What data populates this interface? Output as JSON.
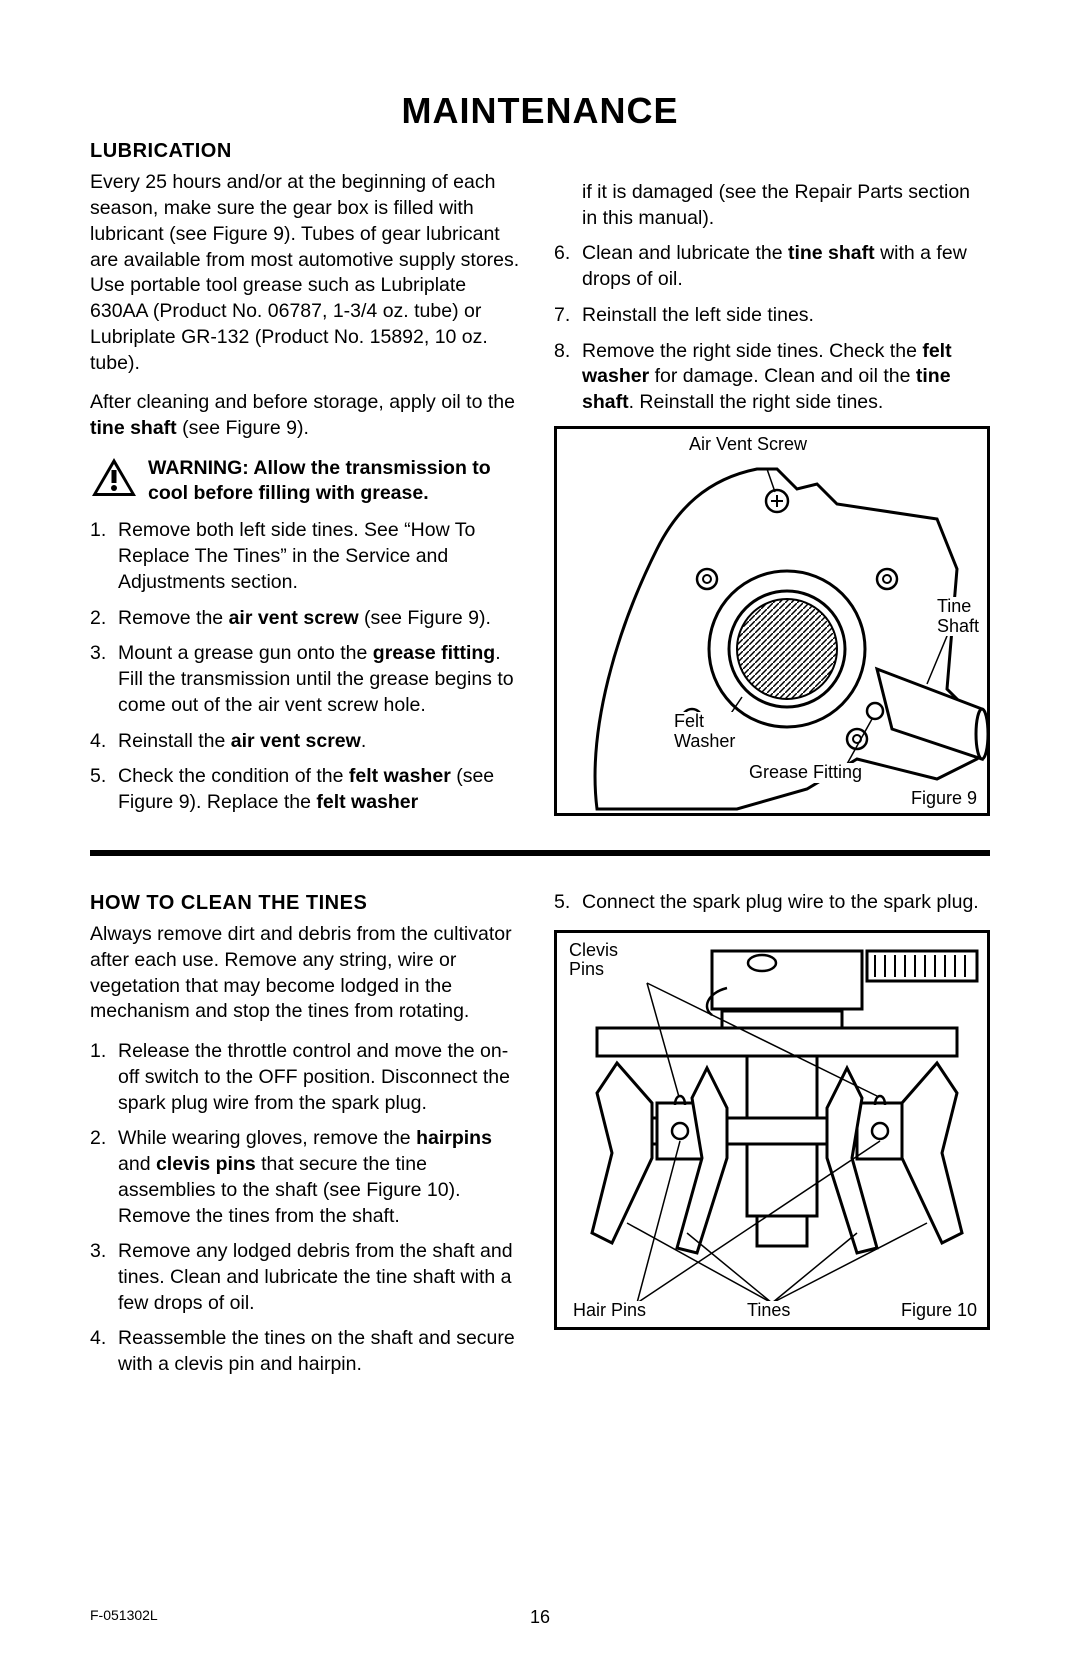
{
  "page": {
    "title": "MAINTENANCE",
    "footer_code": "F-051302L",
    "page_number": "16"
  },
  "lubrication": {
    "heading": "LUBRICATION",
    "intro": "Every 25 hours and/or at the beginning of each season, make sure the gear box is filled with lubricant (see Figure 9). Tubes of gear lubricant are available from most automotive supply stores. Use portable tool grease such as Lubriplate 630AA (Product No. 06787, 1-3/4 oz. tube) or Lubriplate GR-132 (Product No. 15892, 10 oz. tube).",
    "after": "After cleaning and before storage, apply oil to the ",
    "after_bold": "tine shaft",
    "after_tail": " (see Figure 9).",
    "warning": "WARNING: Allow the transmission to cool before filling with grease.",
    "steps_left": [
      {
        "n": "1.",
        "pre": "Remove both left side tines. See “How To Replace The Tines” in the Service and Adjustments section."
      },
      {
        "n": "2.",
        "pre": "Remove the ",
        "b1": "air vent screw",
        "post": " (see Figure 9)."
      },
      {
        "n": "3.",
        "pre": "Mount a grease gun onto the ",
        "b1": "grease fitting",
        "post": ". Fill the transmission until the grease begins to come out of the air vent screw hole."
      },
      {
        "n": "4.",
        "pre": "Reinstall the ",
        "b1": "air vent screw",
        "post": "."
      },
      {
        "n": "5.",
        "pre": "Check the condition of the ",
        "b1": "felt washer",
        "post": " (see Figure 9). Replace the ",
        "b2": "felt washer"
      }
    ],
    "steps_right": [
      {
        "n": "",
        "pre": "if it is damaged (see the Repair Parts section in this manual)."
      },
      {
        "n": "6.",
        "pre": "Clean and lubricate the ",
        "b1": "tine shaft",
        "post": " with a few drops of oil."
      },
      {
        "n": "7.",
        "pre": "Reinstall the left side tines."
      },
      {
        "n": "8.",
        "pre": "Remove the right side tines. Check the ",
        "b1": "felt washer",
        "post": " for damage. Clean and oil the ",
        "b2": "tine shaft",
        "post2": ". Reinstall the right side tines."
      }
    ]
  },
  "figure9": {
    "air_vent": "Air Vent Screw",
    "tine_shaft_l1": "Tine",
    "tine_shaft_l2": "Shaft",
    "felt_l1": "Felt",
    "felt_l2": "Washer",
    "grease": "Grease Fitting",
    "caption": "Figure 9"
  },
  "clean": {
    "heading": "HOW TO CLEAN THE TINES",
    "intro": "Always remove dirt and debris from the cultivator after each use. Remove any string, wire or vegetation that may become lodged in the mechanism and stop the tines from rotating.",
    "steps_left": [
      {
        "n": "1.",
        "pre": "Release the throttle control and move the  on-off switch to the OFF position. Disconnect the spark plug wire from the spark plug."
      },
      {
        "n": "2.",
        "pre": "While wearing gloves, remove the ",
        "b1": "hairpins",
        "post": " and ",
        "b2": "clevis pins",
        "post2": " that secure the tine assemblies to the shaft (see Figure 10). Remove the tines from the shaft."
      },
      {
        "n": "3.",
        "pre": "Remove any lodged debris from the shaft and tines. Clean and lubricate the tine shaft with a few drops of oil."
      },
      {
        "n": "4.",
        "pre": "Reassemble the tines on the shaft and secure with a clevis pin and hairpin."
      }
    ],
    "steps_right": [
      {
        "n": "5.",
        "pre": "Connect the spark plug wire to the spark plug."
      }
    ]
  },
  "figure10": {
    "clevis_l1": "Clevis",
    "clevis_l2": "Pins",
    "hair": "Hair Pins",
    "tines": "Tines",
    "caption": "Figure 10"
  }
}
